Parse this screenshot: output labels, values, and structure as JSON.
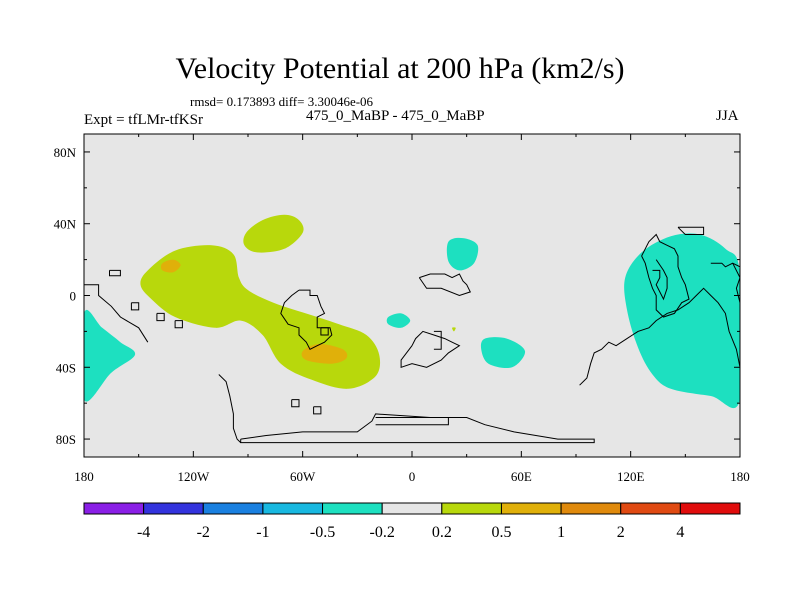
{
  "chart_data": {
    "type": "heatmap",
    "title": "Velocity Potential at 200 hPa (km2/s)",
    "stats": "rmsd= 0.173893 diff= 3.30046e-06",
    "subtitle_left": "Expt = tfLMr-tfKSr",
    "subtitle_center": "475_0_MaBP - 475_0_MaBP",
    "subtitle_right": "JJA",
    "xlim": [
      -180,
      180
    ],
    "ylim": [
      -90,
      90
    ],
    "x_ticks": [
      {
        "value": -180,
        "label": "180"
      },
      {
        "value": -120,
        "label": "120W"
      },
      {
        "value": -60,
        "label": "60W"
      },
      {
        "value": 0,
        "label": "0"
      },
      {
        "value": 60,
        "label": "60E"
      },
      {
        "value": 120,
        "label": "120E"
      },
      {
        "value": 180,
        "label": "180"
      }
    ],
    "y_ticks": [
      {
        "value": 80,
        "label": "80N"
      },
      {
        "value": 40,
        "label": "40N"
      },
      {
        "value": 0,
        "label": "0"
      },
      {
        "value": -40,
        "label": "40S"
      },
      {
        "value": -80,
        "label": "80S"
      }
    ],
    "colorbar": {
      "colors": [
        "#8a1fe6",
        "#3333dd",
        "#1a80e0",
        "#18b8e0",
        "#1de0c0",
        "#e6e6e6",
        "#b8d80c",
        "#e0b00a",
        "#e08a0c",
        "#e04a12",
        "#e00c0c"
      ],
      "levels": [
        "-4",
        "-2",
        "-1",
        "-0.5",
        "-0.2",
        "0.2",
        "0.5",
        "1",
        "2",
        "4"
      ]
    },
    "anomaly_regions": [
      {
        "name": "north-atlantic-positive",
        "level": "0.2 to 0.5",
        "color": "#b8d80c",
        "points": [
          [
            -91,
            35
          ],
          [
            -82,
            42
          ],
          [
            -70,
            45
          ],
          [
            -62,
            42
          ],
          [
            -60,
            35
          ],
          [
            -70,
            26
          ],
          [
            -85,
            24
          ],
          [
            -92,
            28
          ]
        ]
      },
      {
        "name": "tropical-americas-positive",
        "level": "0.2 to 0.5",
        "color": "#b8d80c",
        "points": [
          [
            -145,
            14
          ],
          [
            -130,
            25
          ],
          [
            -110,
            28
          ],
          [
            -98,
            23
          ],
          [
            -95,
            10
          ],
          [
            -90,
            3
          ],
          [
            -76,
            -4
          ],
          [
            -55,
            -11
          ],
          [
            -40,
            -16
          ],
          [
            -25,
            -22
          ],
          [
            -18,
            -33
          ],
          [
            -20,
            -45
          ],
          [
            -35,
            -52
          ],
          [
            -55,
            -47
          ],
          [
            -72,
            -38
          ],
          [
            -82,
            -22
          ],
          [
            -94,
            -14
          ],
          [
            -108,
            -18
          ],
          [
            -130,
            -12
          ],
          [
            -143,
            -2
          ],
          [
            -149,
            6
          ]
        ]
      },
      {
        "name": "tropical-americas-core",
        "level": "0.5 to 1",
        "color": "#e0b00a",
        "points": [
          [
            -137,
            18
          ],
          [
            -131,
            20
          ],
          [
            -127,
            17
          ],
          [
            -131,
            13
          ],
          [
            -137,
            14
          ]
        ]
      },
      {
        "name": "south-atlantic-core",
        "level": "0.5 to 1",
        "color": "#e0b00a",
        "points": [
          [
            -60,
            -31
          ],
          [
            -51,
            -27
          ],
          [
            -38,
            -30
          ],
          [
            -36,
            -35
          ],
          [
            -44,
            -38
          ],
          [
            -58,
            -36
          ]
        ]
      },
      {
        "name": "west-pacific-negative",
        "level": "-0.5 to -0.2",
        "color": "#1de0c0",
        "points": [
          [
            -180,
            -10
          ],
          [
            -170,
            -18
          ],
          [
            -160,
            -26
          ],
          [
            -152,
            -33
          ],
          [
            -165,
            -43
          ],
          [
            -180,
            -58
          ]
        ]
      },
      {
        "name": "west-pacific-negative-east",
        "level": "-0.5 to -0.2",
        "color": "#1de0c0",
        "points": [
          [
            180,
            -58
          ],
          [
            164,
            -56
          ],
          [
            142,
            -52
          ],
          [
            132,
            -44
          ],
          [
            124,
            -29
          ],
          [
            118,
            -8
          ],
          [
            117,
            10
          ],
          [
            126,
            24
          ],
          [
            142,
            33
          ],
          [
            158,
            34
          ],
          [
            172,
            26
          ],
          [
            180,
            12
          ]
        ]
      },
      {
        "name": "mediterranean-negative",
        "level": "-0.5 to -0.2",
        "color": "#1de0c0",
        "points": [
          [
            20,
            30
          ],
          [
            28,
            32
          ],
          [
            36,
            28
          ],
          [
            34,
            18
          ],
          [
            26,
            14
          ],
          [
            20,
            19
          ]
        ]
      },
      {
        "name": "atlantic-small-negative",
        "level": "-0.5 to -0.2",
        "color": "#1de0c0",
        "points": [
          [
            -13,
            -12
          ],
          [
            -6,
            -10
          ],
          [
            -1,
            -14
          ],
          [
            -6,
            -18
          ],
          [
            -13,
            -16
          ]
        ]
      },
      {
        "name": "indian-ocean-negative",
        "level": "-0.5 to -0.2",
        "color": "#1de0c0",
        "points": [
          [
            40,
            -24
          ],
          [
            52,
            -24
          ],
          [
            62,
            -31
          ],
          [
            55,
            -40
          ],
          [
            42,
            -38
          ],
          [
            38,
            -30
          ]
        ]
      },
      {
        "name": "africa-speck-positive",
        "level": "0.2 to 0.5",
        "color": "#b8d80c",
        "points": [
          [
            22,
            -18
          ],
          [
            24,
            -18
          ],
          [
            23,
            -20
          ]
        ]
      }
    ],
    "coastlines": [
      {
        "name": "north-pacific-islands",
        "points": [
          [
            -166,
            14
          ],
          [
            -160,
            14
          ],
          [
            -160,
            11
          ],
          [
            -166,
            11
          ],
          [
            -166,
            14
          ]
        ]
      },
      {
        "name": "central-america-coast",
        "points": [
          [
            -180,
            6
          ],
          [
            -172,
            6
          ],
          [
            -172,
            0
          ],
          [
            -165,
            -6
          ],
          [
            -160,
            -12
          ],
          [
            -150,
            -18
          ],
          [
            -145,
            -26
          ]
        ]
      },
      {
        "name": "pacific-islet-1",
        "points": [
          [
            -154,
            -4
          ],
          [
            -150,
            -4
          ],
          [
            -150,
            -8
          ],
          [
            -154,
            -8
          ],
          [
            -154,
            -4
          ]
        ]
      },
      {
        "name": "pacific-islet-2",
        "points": [
          [
            -140,
            -10
          ],
          [
            -136,
            -10
          ],
          [
            -136,
            -14
          ],
          [
            -140,
            -14
          ],
          [
            -140,
            -10
          ]
        ]
      },
      {
        "name": "pacific-islet-3",
        "points": [
          [
            -130,
            -14
          ],
          [
            -126,
            -14
          ],
          [
            -126,
            -18
          ],
          [
            -130,
            -18
          ],
          [
            -130,
            -14
          ]
        ]
      },
      {
        "name": "south-america",
        "points": [
          [
            -62,
            3
          ],
          [
            -56,
            3
          ],
          [
            -56,
            0
          ],
          [
            -52,
            0
          ],
          [
            -50,
            -6
          ],
          [
            -48,
            -10
          ],
          [
            -52,
            -12
          ],
          [
            -52,
            -18
          ],
          [
            -45,
            -18
          ],
          [
            -44,
            -22
          ],
          [
            -48,
            -26
          ],
          [
            -52,
            -28
          ],
          [
            -56,
            -30
          ],
          [
            -58,
            -26
          ],
          [
            -62,
            -22
          ],
          [
            -62,
            -18
          ],
          [
            -68,
            -16
          ],
          [
            -72,
            -10
          ],
          [
            -70,
            -4
          ],
          [
            -66,
            0
          ],
          [
            -62,
            3
          ]
        ]
      },
      {
        "name": "south-america-inlet",
        "points": [
          [
            -50,
            -18
          ],
          [
            -46,
            -18
          ],
          [
            -46,
            -22
          ],
          [
            -50,
            -22
          ],
          [
            -50,
            -18
          ]
        ]
      },
      {
        "name": "south-atlantic-islet-1",
        "points": [
          [
            -66,
            -58
          ],
          [
            -62,
            -58
          ],
          [
            -62,
            -62
          ],
          [
            -66,
            -62
          ],
          [
            -66,
            -58
          ]
        ]
      },
      {
        "name": "south-atlantic-islet-2",
        "points": [
          [
            -54,
            -62
          ],
          [
            -50,
            -62
          ],
          [
            -50,
            -66
          ],
          [
            -54,
            -66
          ],
          [
            -54,
            -62
          ]
        ]
      },
      {
        "name": "antarctic-peninsula",
        "points": [
          [
            -106,
            -44
          ],
          [
            -102,
            -48
          ],
          [
            -100,
            -56
          ],
          [
            -98,
            -66
          ],
          [
            -98,
            -74
          ],
          [
            -96,
            -80
          ],
          [
            -94,
            -82
          ]
        ]
      },
      {
        "name": "antarctica",
        "points": [
          [
            -94,
            -80
          ],
          [
            -94,
            -82
          ],
          [
            100,
            -82
          ],
          [
            100,
            -80
          ],
          [
            80,
            -80
          ],
          [
            56,
            -76
          ],
          [
            40,
            -72
          ],
          [
            30,
            -68
          ],
          [
            10,
            -68
          ],
          [
            -20,
            -66
          ],
          [
            -22,
            -70
          ],
          [
            -30,
            -76
          ],
          [
            -60,
            -76
          ],
          [
            -80,
            -78
          ],
          [
            -94,
            -80
          ]
        ]
      },
      {
        "name": "antarctica-inner",
        "points": [
          [
            -20,
            -68
          ],
          [
            20,
            -68
          ],
          [
            20,
            -72
          ],
          [
            -20,
            -72
          ]
        ]
      },
      {
        "name": "north-africa",
        "points": [
          [
            4,
            10
          ],
          [
            10,
            12
          ],
          [
            18,
            12
          ],
          [
            22,
            10
          ],
          [
            26,
            12
          ],
          [
            28,
            8
          ],
          [
            30,
            6
          ],
          [
            32,
            2
          ],
          [
            26,
            0
          ],
          [
            16,
            4
          ],
          [
            8,
            4
          ],
          [
            4,
            10
          ]
        ]
      },
      {
        "name": "africa-south",
        "points": [
          [
            0,
            -28
          ],
          [
            2,
            -24
          ],
          [
            6,
            -20
          ],
          [
            12,
            -22
          ],
          [
            18,
            -24
          ],
          [
            22,
            -26
          ],
          [
            26,
            -28
          ],
          [
            20,
            -32
          ],
          [
            16,
            -36
          ],
          [
            8,
            -40
          ],
          [
            0,
            -38
          ],
          [
            -6,
            -40
          ],
          [
            -6,
            -36
          ],
          [
            0,
            -28
          ]
        ]
      },
      {
        "name": "africa-block",
        "points": [
          [
            12,
            -20
          ],
          [
            16,
            -20
          ],
          [
            16,
            -30
          ],
          [
            12,
            -30
          ]
        ]
      },
      {
        "name": "australia-region",
        "points": [
          [
            92,
            -50
          ],
          [
            96,
            -46
          ],
          [
            98,
            -38
          ],
          [
            100,
            -32
          ],
          [
            104,
            -30
          ],
          [
            108,
            -26
          ],
          [
            112,
            -28
          ],
          [
            118,
            -24
          ],
          [
            124,
            -20
          ],
          [
            130,
            -18
          ],
          [
            134,
            -14
          ],
          [
            140,
            -10
          ],
          [
            146,
            -8
          ],
          [
            152,
            -4
          ],
          [
            156,
            0
          ],
          [
            160,
            4
          ],
          [
            164,
            0
          ],
          [
            168,
            -4
          ],
          [
            172,
            -10
          ],
          [
            174,
            -20
          ],
          [
            178,
            -30
          ],
          [
            180,
            -40
          ]
        ]
      },
      {
        "name": "asia-coast",
        "points": [
          [
            126,
            22
          ],
          [
            128,
            18
          ],
          [
            130,
            10
          ],
          [
            132,
            4
          ],
          [
            134,
            0
          ],
          [
            134,
            -8
          ],
          [
            138,
            -12
          ],
          [
            144,
            -10
          ],
          [
            148,
            -4
          ],
          [
            152,
            -2
          ],
          [
            150,
            6
          ],
          [
            148,
            10
          ],
          [
            146,
            16
          ],
          [
            146,
            22
          ],
          [
            144,
            26
          ],
          [
            140,
            28
          ],
          [
            136,
            30
          ],
          [
            134,
            34
          ],
          [
            130,
            30
          ],
          [
            126,
            22
          ]
        ]
      },
      {
        "name": "asia-inner",
        "points": [
          [
            132,
            14
          ],
          [
            136,
            14
          ],
          [
            136,
            10
          ],
          [
            134,
            6
          ],
          [
            136,
            2
          ],
          [
            138,
            -2
          ],
          [
            140,
            4
          ],
          [
            140,
            10
          ],
          [
            138,
            14
          ],
          [
            134,
            20
          ]
        ]
      },
      {
        "name": "pacific-box",
        "points": [
          [
            146,
            38
          ],
          [
            160,
            38
          ],
          [
            160,
            34
          ],
          [
            150,
            34
          ],
          [
            146,
            38
          ]
        ]
      },
      {
        "name": "east-pacific-coast",
        "points": [
          [
            164,
            18
          ],
          [
            170,
            18
          ],
          [
            172,
            16
          ],
          [
            176,
            18
          ],
          [
            180,
            16
          ]
        ]
      },
      {
        "name": "east-pacific-coast-2",
        "points": [
          [
            176,
            18
          ],
          [
            180,
            10
          ],
          [
            178,
            4
          ],
          [
            180,
            -4
          ]
        ]
      }
    ]
  }
}
